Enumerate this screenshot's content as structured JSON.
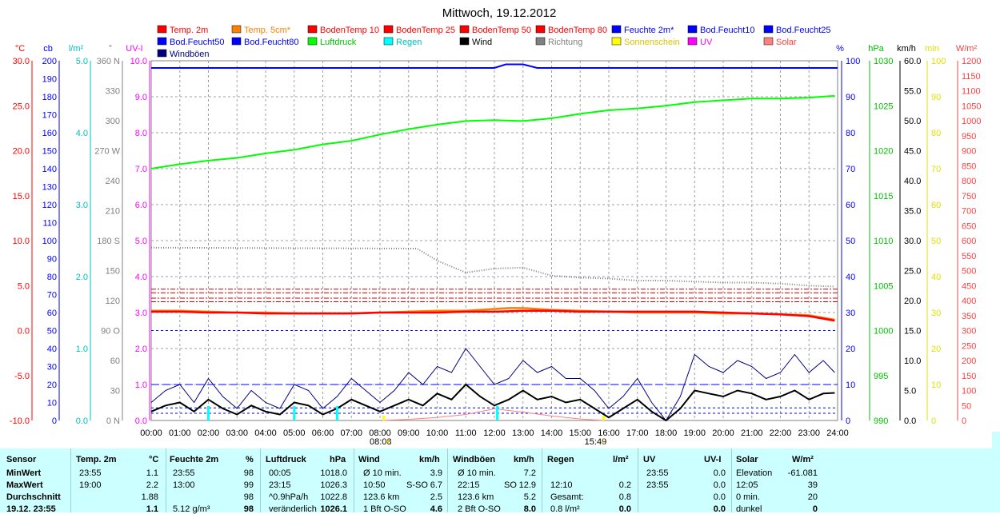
{
  "chart_data": {
    "type": "line",
    "title": "Mittwoch, 19.12.2012",
    "x_ticks": [
      "00:00",
      "01:00",
      "02:00",
      "03:00",
      "04:00",
      "05:00",
      "06:00",
      "07:00",
      "08:00",
      "09:00",
      "10:00",
      "11:00",
      "12:00",
      "13:00",
      "14:00",
      "15:00",
      "16:00",
      "17:00",
      "18:00",
      "19:00",
      "20:00",
      "21:00",
      "22:00",
      "23:00",
      "24:00"
    ],
    "sunrise": "08:08",
    "sunset": "15:49",
    "legend": [
      {
        "name": "Temp. 2m",
        "color": "#ff0000"
      },
      {
        "name": "Temp. 5cm*",
        "color": "#ff8000"
      },
      {
        "name": "BodenTemp 10",
        "color": "#ff0000"
      },
      {
        "name": "BodenTemp 25",
        "color": "#ff0000"
      },
      {
        "name": "BodenTemp 50",
        "color": "#ff0000"
      },
      {
        "name": "BodenTemp 80",
        "color": "#ff0000"
      },
      {
        "name": "Feuchte 2m*",
        "color": "#0000ff"
      },
      {
        "name": "Bod.Feucht10",
        "color": "#0000ff"
      },
      {
        "name": "Bod.Feucht25",
        "color": "#0000ff"
      },
      {
        "name": "Bod.Feucht50",
        "color": "#0000ff"
      },
      {
        "name": "Bod.Feucht80",
        "color": "#0000ff"
      },
      {
        "name": "Luftdruck",
        "color": "#00ff00"
      },
      {
        "name": "Regen",
        "color": "#00ffff"
      },
      {
        "name": "Wind",
        "color": "#000000"
      },
      {
        "name": "Richtung",
        "color": "#808080"
      },
      {
        "name": "Sonnenschein",
        "color": "#ffff00"
      },
      {
        "name": "UV",
        "color": "#ff00ff"
      },
      {
        "name": "Solar",
        "color": "#ff8080"
      },
      {
        "name": "Windböen",
        "color": "#000080"
      }
    ],
    "axes": {
      "temp": {
        "unit": "°C",
        "color": "#ff0000",
        "ticks": [
          "30.0",
          "25.0",
          "20.0",
          "15.0",
          "10.0",
          "5.0",
          "0.0",
          "-5.0",
          "-10.0"
        ]
      },
      "cb": {
        "unit": "cb",
        "color": "#0000ff",
        "ticks": [
          "200",
          "190",
          "180",
          "170",
          "160",
          "150",
          "140",
          "130",
          "120",
          "110",
          "100",
          "90",
          "80",
          "70",
          "60",
          "50",
          "40",
          "30",
          "20",
          "10",
          "0"
        ]
      },
      "rain": {
        "unit": "l/m²",
        "color": "#00c0c0",
        "ticks": [
          "5.0",
          "4.0",
          "3.0",
          "2.0",
          "1.0",
          "0.0"
        ]
      },
      "dir": {
        "unit": "°",
        "color": "#808080",
        "ticks": [
          "360 N",
          "330",
          "300",
          "270 W",
          "240",
          "210",
          "180 S",
          "150",
          "120",
          "90  O",
          "60",
          "30",
          "0  N"
        ]
      },
      "uvi": {
        "unit": "UV-I",
        "color": "#ff00ff",
        "ticks": [
          "10.0",
          "9.0",
          "8.0",
          "7.0",
          "6.0",
          "5.0",
          "4.0",
          "3.0",
          "2.0",
          "1.0",
          "0.0"
        ]
      },
      "pct": {
        "unit": "%",
        "color": "#0000ff",
        "ticks": [
          "100",
          "90",
          "80",
          "70",
          "60",
          "50",
          "40",
          "30",
          "20",
          "10",
          "0"
        ]
      },
      "hpa": {
        "unit": "hPa",
        "color": "#00c000",
        "ticks": [
          "1030",
          "1025",
          "1020",
          "1015",
          "1010",
          "1005",
          "1000",
          "995",
          "990"
        ]
      },
      "kmh": {
        "unit": "km/h",
        "color": "#000000",
        "ticks": [
          "60.0",
          "55.0",
          "50.0",
          "45.0",
          "40.0",
          "35.0",
          "30.0",
          "25.0",
          "20.0",
          "15.0",
          "10.0",
          "5.0",
          "0.0"
        ]
      },
      "min": {
        "unit": "min",
        "color": "#e0e000",
        "ticks": [
          "100",
          "90",
          "80",
          "70",
          "60",
          "50",
          "40",
          "30",
          "20",
          "10",
          "0"
        ]
      },
      "wm2": {
        "unit": "W/m²",
        "color": "#ff4040",
        "ticks": [
          "1200",
          "1150",
          "1100",
          "1050",
          "1000",
          "950",
          "900",
          "850",
          "800",
          "750",
          "700",
          "650",
          "600",
          "550",
          "500",
          "450",
          "400",
          "350",
          "300",
          "250",
          "200",
          "150",
          "100",
          "50",
          "0"
        ]
      }
    },
    "series": [
      {
        "name": "Luftdruck",
        "unit": "hPa",
        "x": [
          0,
          1,
          2,
          3,
          4,
          5,
          6,
          7,
          8,
          9,
          10,
          11,
          12,
          13,
          14,
          15,
          16,
          17,
          18,
          19,
          20,
          21,
          22,
          23,
          23.9
        ],
        "values": [
          1018.0,
          1018.5,
          1018.9,
          1019.2,
          1019.7,
          1020.1,
          1020.7,
          1021.1,
          1021.8,
          1022.4,
          1022.9,
          1023.3,
          1023.4,
          1023.3,
          1023.6,
          1024.1,
          1024.5,
          1024.7,
          1025.0,
          1025.4,
          1025.6,
          1025.8,
          1025.8,
          1025.9,
          1026.1
        ]
      },
      {
        "name": "Feuchte 2m*",
        "unit": "%",
        "x": [
          0,
          12,
          12.4,
          13,
          13.5,
          24
        ],
        "values": [
          98,
          98,
          99,
          99,
          98,
          98
        ]
      },
      {
        "name": "Temp. 2m",
        "unit": "°C",
        "x": [
          0,
          1,
          2,
          3,
          4,
          5,
          6,
          7,
          8,
          9,
          10,
          11,
          12,
          13,
          14,
          15,
          16,
          17,
          18,
          19,
          20,
          21,
          22,
          23,
          23.9
        ],
        "values": [
          2.1,
          2.1,
          2.0,
          2.0,
          1.9,
          1.9,
          1.9,
          1.9,
          2.0,
          2.0,
          2.0,
          2.1,
          2.1,
          2.2,
          2.2,
          2.1,
          2.1,
          2.1,
          2.1,
          2.1,
          2.0,
          1.9,
          1.8,
          1.6,
          1.1
        ]
      },
      {
        "name": "Temp. 5cm*",
        "unit": "°C",
        "x": [
          0,
          1,
          2,
          3,
          4,
          5,
          6,
          7,
          8,
          9,
          10,
          11,
          12,
          12.5,
          13,
          13.5,
          14,
          15,
          16,
          17,
          18,
          19,
          20,
          21,
          22,
          23,
          23.9
        ],
        "values": [
          2.2,
          2.2,
          2.1,
          2.0,
          2.0,
          1.9,
          1.9,
          1.9,
          2.0,
          2.1,
          2.2,
          2.2,
          2.4,
          2.5,
          2.5,
          2.4,
          2.3,
          2.2,
          2.1,
          2.0,
          2.0,
          2.0,
          1.9,
          1.9,
          1.8,
          1.7,
          1.2
        ]
      },
      {
        "name": "BodenTemp 10",
        "unit": "°C",
        "values_const": 3.2
      },
      {
        "name": "BodenTemp 25",
        "unit": "°C",
        "values_const": 3.6
      },
      {
        "name": "BodenTemp 50",
        "unit": "°C",
        "values_const": 4.2
      },
      {
        "name": "BodenTemp 80",
        "unit": "°C",
        "values_const": 4.6
      },
      {
        "name": "Richtung",
        "unit": "°",
        "x": [
          0,
          9.3,
          10,
          11,
          12,
          13,
          14,
          15,
          16,
          17,
          18,
          19,
          20,
          21,
          22,
          23,
          23.9
        ],
        "values": [
          173,
          172,
          160,
          148,
          152,
          153,
          145,
          143,
          142,
          140,
          140,
          139,
          138,
          138,
          137,
          135,
          134
        ]
      },
      {
        "name": "Wind",
        "unit": "km/h",
        "x": [
          0,
          0.5,
          1,
          1.5,
          2,
          2.5,
          3,
          3.5,
          4,
          4.5,
          5,
          5.5,
          6,
          6.5,
          7,
          7.5,
          8,
          8.5,
          9,
          9.5,
          10,
          10.5,
          11,
          11.5,
          12,
          12.5,
          13,
          13.5,
          14,
          14.5,
          15,
          15.5,
          16,
          16.5,
          17,
          17.5,
          18,
          18.5,
          19,
          19.5,
          20,
          20.5,
          21,
          21.5,
          22,
          22.5,
          23,
          23.5,
          23.9
        ],
        "values": [
          1.5,
          2.5,
          3.0,
          1.5,
          3.5,
          2.0,
          1.0,
          2.5,
          1.5,
          1.0,
          3.0,
          2.5,
          1.0,
          2.0,
          3.5,
          2.5,
          1.5,
          2.5,
          3.5,
          2.5,
          4.5,
          3.5,
          6.0,
          4.0,
          2.5,
          3.5,
          5.0,
          3.5,
          4.0,
          3.0,
          3.5,
          2.0,
          0.5,
          2.0,
          3.5,
          1.5,
          0.0,
          2.0,
          5.0,
          4.5,
          4.0,
          5.0,
          4.5,
          3.5,
          4.0,
          5.0,
          3.5,
          4.5,
          4.6
        ]
      },
      {
        "name": "Windböen",
        "unit": "km/h",
        "x": [
          0,
          0.5,
          1,
          1.5,
          2,
          2.5,
          3,
          3.5,
          4,
          4.5,
          5,
          5.5,
          6,
          6.5,
          7,
          7.5,
          8,
          8.5,
          9,
          9.5,
          10,
          10.5,
          11,
          11.5,
          12,
          12.5,
          13,
          13.5,
          14,
          14.5,
          15,
          15.5,
          16,
          16.5,
          17,
          17.5,
          18,
          18.5,
          19,
          19.5,
          20,
          20.5,
          21,
          21.5,
          22,
          22.5,
          23,
          23.5,
          23.9
        ],
        "values": [
          3,
          5,
          6,
          3,
          7,
          4,
          2,
          5,
          3,
          2,
          6,
          5,
          2,
          4,
          7,
          5,
          3,
          5,
          8,
          6,
          9,
          8,
          12,
          9,
          6,
          7,
          10,
          8,
          9,
          7,
          7,
          5,
          2,
          4,
          7,
          3,
          0,
          4,
          11,
          9,
          8,
          10,
          9,
          7,
          8,
          11,
          8,
          10,
          8.0
        ]
      },
      {
        "name": "Regen",
        "unit": "l/m²",
        "x": [
          2.0,
          5.0,
          6.5,
          12.1
        ],
        "values": [
          0.2,
          0.2,
          0.2,
          0.2
        ]
      },
      {
        "name": "Solar",
        "unit": "W/m²",
        "x": [
          8.1,
          9,
          10,
          11,
          12,
          13,
          14,
          15,
          15.8
        ],
        "values": [
          0,
          4,
          10,
          20,
          39,
          28,
          15,
          5,
          0
        ]
      }
    ]
  },
  "stats": {
    "headers": {
      "sensor": "Sensor",
      "temp": "Temp. 2m",
      "temp_u": "°C",
      "feuchte": "Feuchte 2m",
      "feuchte_u": "%",
      "luft": "Luftdruck",
      "luft_u": "hPa",
      "wind": "Wind",
      "wind_u": "km/h",
      "boeen": "Windböen",
      "boeen_u": "km/h",
      "regen": "Regen",
      "regen_u": "l/m²",
      "uv": "UV",
      "uv_u": "UV-I",
      "solar": "Solar",
      "solar_u": "W/m²"
    },
    "row_labels": [
      "MinWert",
      "MaxWert",
      "Durchschnitt",
      "19.12. 23:55"
    ],
    "temp": [
      [
        "23:55",
        "1.1"
      ],
      [
        "19:00",
        "2.2"
      ],
      [
        "",
        "1.88"
      ],
      [
        "",
        "1.1"
      ]
    ],
    "feuchte": [
      [
        "23:55",
        "98"
      ],
      [
        "13:00",
        "99"
      ],
      [
        "",
        "98"
      ],
      [
        "5.12 g/m³",
        "98"
      ]
    ],
    "luft": [
      [
        "00:05",
        "1018.0"
      ],
      [
        "23:15",
        "1026.3"
      ],
      [
        "^0.9hPa/h",
        "1022.8"
      ],
      [
        "veränderlich",
        "1026.1"
      ]
    ],
    "wind": [
      [
        "Ø 10 min.",
        "",
        "3.9"
      ],
      [
        "10:50",
        "S-SO",
        "6.7"
      ],
      [
        "123.6 km",
        "",
        "2.5"
      ],
      [
        "1 Bft O-SO",
        "",
        "4.6"
      ]
    ],
    "boeen": [
      [
        "Ø 10 min.",
        "",
        "7.2"
      ],
      [
        "22:15",
        "SO",
        "12.9"
      ],
      [
        "123.6 km",
        "",
        "5.2"
      ],
      [
        "2 Bft O-SO",
        "",
        "8.0"
      ]
    ],
    "regen": [
      [
        "",
        ""
      ],
      [
        "12:10",
        "0.2"
      ],
      [
        "Gesamt:",
        "0.8"
      ],
      [
        "0.8 l/m²",
        "0.0"
      ]
    ],
    "uv": [
      [
        "23:55",
        "0.0"
      ],
      [
        "23:55",
        "0.0"
      ],
      [
        "",
        "0.0"
      ],
      [
        "",
        "0.0"
      ]
    ],
    "solar": [
      [
        "Elevation",
        "-61.081"
      ],
      [
        "12:05",
        "39"
      ],
      [
        "0 min.",
        "20"
      ],
      [
        "dunkel",
        "0"
      ]
    ]
  }
}
